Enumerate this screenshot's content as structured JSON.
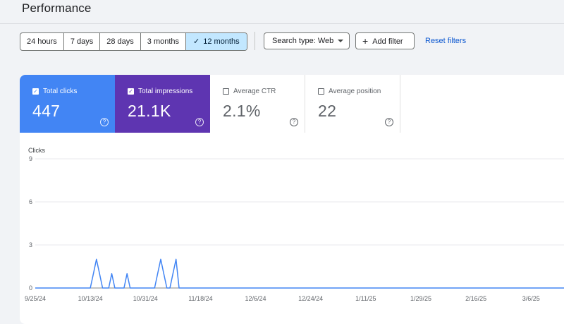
{
  "page": {
    "title": "Performance"
  },
  "date_range": {
    "options": [
      {
        "label": "24 hours",
        "active": false
      },
      {
        "label": "7 days",
        "active": false
      },
      {
        "label": "28 days",
        "active": false
      },
      {
        "label": "3 months",
        "active": false
      },
      {
        "label": "12 months",
        "active": true
      }
    ],
    "check_icon": "check-icon"
  },
  "filters": {
    "search_type_label": "Search type: Web",
    "add_filter_label": "Add filter",
    "reset_label": "Reset filters"
  },
  "metrics": {
    "clicks": {
      "label": "Total clicks",
      "value": "447",
      "checked": true,
      "color": "#4285f4"
    },
    "impressions": {
      "label": "Total impressions",
      "value": "21.1K",
      "checked": true,
      "color": "#5e35b1"
    },
    "ctr": {
      "label": "Average CTR",
      "value": "2.1%",
      "checked": false
    },
    "position": {
      "label": "Average position",
      "value": "22",
      "checked": false
    }
  },
  "chart_data": {
    "type": "line",
    "ylabel": "Clicks",
    "ylim": [
      0,
      9
    ],
    "y_ticks": [
      0,
      3,
      6,
      9
    ],
    "x_tick_labels": [
      "9/25/24",
      "10/13/24",
      "10/31/24",
      "11/18/24",
      "12/6/24",
      "12/24/24",
      "1/11/25",
      "1/29/25",
      "2/16/25",
      "3/6/25"
    ],
    "x_tick_day_index": [
      0,
      18,
      36,
      54,
      72,
      90,
      108,
      126,
      144,
      162
    ],
    "day_count": 177,
    "grid": true,
    "series": [
      {
        "name": "Total clicks",
        "color": "#4285f4",
        "values": [
          0,
          0,
          0,
          0,
          0,
          0,
          0,
          0,
          0,
          0,
          0,
          0,
          0,
          0,
          0,
          0,
          0,
          0,
          0,
          1,
          2,
          1,
          0,
          0,
          0,
          1,
          0,
          0,
          0,
          0,
          1,
          0,
          0,
          0,
          0,
          0,
          0,
          0,
          0,
          0,
          1,
          2,
          1,
          0,
          0,
          1,
          2,
          0,
          0,
          0,
          0,
          0,
          0,
          0,
          0,
          0,
          0,
          0,
          0,
          0,
          0,
          0,
          0,
          0,
          0,
          0,
          0,
          0,
          0,
          0,
          0,
          0,
          0,
          0,
          0,
          0,
          0,
          0,
          0,
          0,
          0,
          0,
          0,
          0,
          0,
          0,
          0,
          0,
          0,
          0,
          0,
          0,
          0,
          0,
          0,
          0,
          0,
          0,
          0,
          0,
          0,
          0,
          0,
          0,
          0,
          0,
          0,
          0,
          0,
          0,
          0,
          0,
          0,
          0,
          0,
          0,
          0,
          0,
          0,
          0,
          0,
          0,
          0,
          0,
          0,
          0,
          0,
          0,
          0,
          0,
          0,
          0,
          0,
          0,
          0,
          0,
          0,
          0,
          0,
          0,
          0,
          0,
          0,
          0,
          0,
          0,
          0,
          0,
          0,
          0,
          0,
          0,
          0,
          0,
          0,
          0,
          0,
          0,
          0,
          0,
          0,
          0,
          0,
          0,
          0,
          0,
          0,
          0,
          0,
          0,
          0,
          0,
          0,
          0,
          0,
          0,
          0
        ]
      },
      {
        "name": "Total impressions",
        "color": "#5e35b1",
        "values": []
      }
    ]
  }
}
